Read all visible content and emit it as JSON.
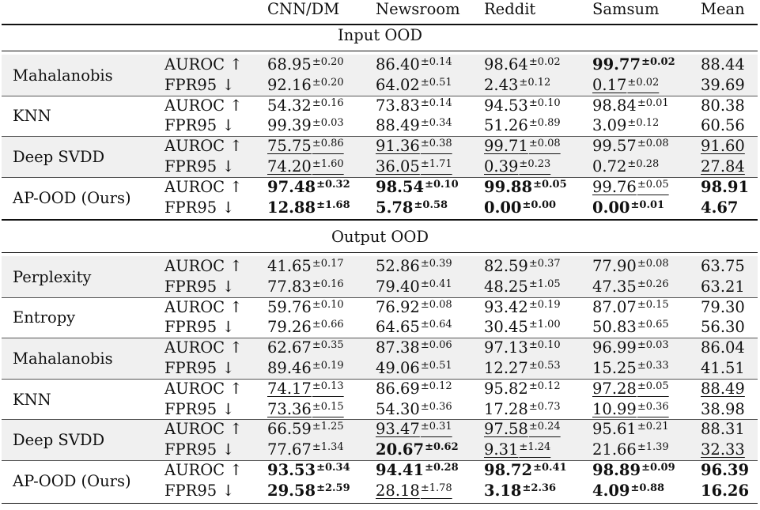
{
  "header": {
    "col0": "",
    "col1": "",
    "cols": [
      "CNN/DM",
      "Newsroom",
      "Reddit",
      "Samsum",
      "Mean"
    ]
  },
  "sections": [
    {
      "title": "Input OOD",
      "groups": [
        {
          "method": "Mahalanobis",
          "shaded": true,
          "rows": [
            {
              "metric": "AUROC ↑",
              "cells": [
                {
                  "v": "68.95",
                  "s": "±0.20",
                  "b": false,
                  "u": false
                },
                {
                  "v": "86.40",
                  "s": "±0.14",
                  "b": false,
                  "u": false
                },
                {
                  "v": "98.64",
                  "s": "±0.02",
                  "b": false,
                  "u": false
                },
                {
                  "v": "99.77",
                  "s": "±0.02",
                  "b": true,
                  "u": false
                },
                {
                  "v": "88.44",
                  "s": "",
                  "b": false,
                  "u": false
                }
              ]
            },
            {
              "metric": "FPR95 ↓",
              "cells": [
                {
                  "v": "92.16",
                  "s": "±0.20",
                  "b": false,
                  "u": false
                },
                {
                  "v": "64.02",
                  "s": "±0.51",
                  "b": false,
                  "u": false
                },
                {
                  "v": "2.43",
                  "s": "±0.12",
                  "b": false,
                  "u": false
                },
                {
                  "v": "0.17",
                  "s": "±0.02",
                  "b": false,
                  "u": true
                },
                {
                  "v": "39.69",
                  "s": "",
                  "b": false,
                  "u": false
                }
              ]
            }
          ]
        },
        {
          "method": "KNN",
          "shaded": false,
          "rows": [
            {
              "metric": "AUROC ↑",
              "cells": [
                {
                  "v": "54.32",
                  "s": "±0.16",
                  "b": false,
                  "u": false
                },
                {
                  "v": "73.83",
                  "s": "±0.14",
                  "b": false,
                  "u": false
                },
                {
                  "v": "94.53",
                  "s": "±0.10",
                  "b": false,
                  "u": false
                },
                {
                  "v": "98.84",
                  "s": "±0.01",
                  "b": false,
                  "u": false
                },
                {
                  "v": "80.38",
                  "s": "",
                  "b": false,
                  "u": false
                }
              ]
            },
            {
              "metric": "FPR95 ↓",
              "cells": [
                {
                  "v": "99.39",
                  "s": "±0.03",
                  "b": false,
                  "u": false
                },
                {
                  "v": "88.49",
                  "s": "±0.34",
                  "b": false,
                  "u": false
                },
                {
                  "v": "51.26",
                  "s": "±0.89",
                  "b": false,
                  "u": false
                },
                {
                  "v": "3.09",
                  "s": "±0.12",
                  "b": false,
                  "u": false
                },
                {
                  "v": "60.56",
                  "s": "",
                  "b": false,
                  "u": false
                }
              ]
            }
          ]
        },
        {
          "method": "Deep SVDD",
          "shaded": true,
          "rows": [
            {
              "metric": "AUROC ↑",
              "cells": [
                {
                  "v": "75.75",
                  "s": "±0.86",
                  "b": false,
                  "u": true
                },
                {
                  "v": "91.36",
                  "s": "±0.38",
                  "b": false,
                  "u": true
                },
                {
                  "v": "99.71",
                  "s": "±0.08",
                  "b": false,
                  "u": true
                },
                {
                  "v": "99.57",
                  "s": "±0.08",
                  "b": false,
                  "u": false
                },
                {
                  "v": "91.60",
                  "s": "",
                  "b": false,
                  "u": true
                }
              ]
            },
            {
              "metric": "FPR95 ↓",
              "cells": [
                {
                  "v": "74.20",
                  "s": "±1.60",
                  "b": false,
                  "u": true
                },
                {
                  "v": "36.05",
                  "s": "±1.71",
                  "b": false,
                  "u": true
                },
                {
                  "v": "0.39",
                  "s": "±0.23",
                  "b": false,
                  "u": true
                },
                {
                  "v": "0.72",
                  "s": "±0.28",
                  "b": false,
                  "u": false
                },
                {
                  "v": "27.84",
                  "s": "",
                  "b": false,
                  "u": true
                }
              ]
            }
          ]
        },
        {
          "method": "AP-OOD (Ours)",
          "shaded": false,
          "rows": [
            {
              "metric": "AUROC ↑",
              "cells": [
                {
                  "v": "97.48",
                  "s": "±0.32",
                  "b": true,
                  "u": false
                },
                {
                  "v": "98.54",
                  "s": "±0.10",
                  "b": true,
                  "u": false
                },
                {
                  "v": "99.88",
                  "s": "±0.05",
                  "b": true,
                  "u": false
                },
                {
                  "v": "99.76",
                  "s": "±0.05",
                  "b": false,
                  "u": true
                },
                {
                  "v": "98.91",
                  "s": "",
                  "b": true,
                  "u": false
                }
              ]
            },
            {
              "metric": "FPR95 ↓",
              "cells": [
                {
                  "v": "12.88",
                  "s": "±1.68",
                  "b": true,
                  "u": false
                },
                {
                  "v": "5.78",
                  "s": "±0.58",
                  "b": true,
                  "u": false
                },
                {
                  "v": "0.00",
                  "s": "±0.00",
                  "b": true,
                  "u": false
                },
                {
                  "v": "0.00",
                  "s": "±0.01",
                  "b": true,
                  "u": false
                },
                {
                  "v": "4.67",
                  "s": "",
                  "b": true,
                  "u": false
                }
              ]
            }
          ]
        }
      ]
    },
    {
      "title": "Output OOD",
      "groups": [
        {
          "method": "Perplexity",
          "shaded": true,
          "rows": [
            {
              "metric": "AUROC ↑",
              "cells": [
                {
                  "v": "41.65",
                  "s": "±0.17",
                  "b": false,
                  "u": false
                },
                {
                  "v": "52.86",
                  "s": "±0.39",
                  "b": false,
                  "u": false
                },
                {
                  "v": "82.59",
                  "s": "±0.37",
                  "b": false,
                  "u": false
                },
                {
                  "v": "77.90",
                  "s": "±0.08",
                  "b": false,
                  "u": false
                },
                {
                  "v": "63.75",
                  "s": "",
                  "b": false,
                  "u": false
                }
              ]
            },
            {
              "metric": "FPR95 ↓",
              "cells": [
                {
                  "v": "77.83",
                  "s": "±0.16",
                  "b": false,
                  "u": false
                },
                {
                  "v": "79.40",
                  "s": "±0.41",
                  "b": false,
                  "u": false
                },
                {
                  "v": "48.25",
                  "s": "±1.05",
                  "b": false,
                  "u": false
                },
                {
                  "v": "47.35",
                  "s": "±0.26",
                  "b": false,
                  "u": false
                },
                {
                  "v": "63.21",
                  "s": "",
                  "b": false,
                  "u": false
                }
              ]
            }
          ]
        },
        {
          "method": "Entropy",
          "shaded": false,
          "rows": [
            {
              "metric": "AUROC ↑",
              "cells": [
                {
                  "v": "59.76",
                  "s": "±0.10",
                  "b": false,
                  "u": false
                },
                {
                  "v": "76.92",
                  "s": "±0.08",
                  "b": false,
                  "u": false
                },
                {
                  "v": "93.42",
                  "s": "±0.19",
                  "b": false,
                  "u": false
                },
                {
                  "v": "87.07",
                  "s": "±0.15",
                  "b": false,
                  "u": false
                },
                {
                  "v": "79.30",
                  "s": "",
                  "b": false,
                  "u": false
                }
              ]
            },
            {
              "metric": "FPR95 ↓",
              "cells": [
                {
                  "v": "79.26",
                  "s": "±0.66",
                  "b": false,
                  "u": false
                },
                {
                  "v": "64.65",
                  "s": "±0.64",
                  "b": false,
                  "u": false
                },
                {
                  "v": "30.45",
                  "s": "±1.00",
                  "b": false,
                  "u": false
                },
                {
                  "v": "50.83",
                  "s": "±0.65",
                  "b": false,
                  "u": false
                },
                {
                  "v": "56.30",
                  "s": "",
                  "b": false,
                  "u": false
                }
              ]
            }
          ]
        },
        {
          "method": "Mahalanobis",
          "shaded": true,
          "rows": [
            {
              "metric": "AUROC ↑",
              "cells": [
                {
                  "v": "62.67",
                  "s": "±0.35",
                  "b": false,
                  "u": false
                },
                {
                  "v": "87.38",
                  "s": "±0.06",
                  "b": false,
                  "u": false
                },
                {
                  "v": "97.13",
                  "s": "±0.10",
                  "b": false,
                  "u": false
                },
                {
                  "v": "96.99",
                  "s": "±0.03",
                  "b": false,
                  "u": false
                },
                {
                  "v": "86.04",
                  "s": "",
                  "b": false,
                  "u": false
                }
              ]
            },
            {
              "metric": "FPR95 ↓",
              "cells": [
                {
                  "v": "89.46",
                  "s": "±0.19",
                  "b": false,
                  "u": false
                },
                {
                  "v": "49.06",
                  "s": "±0.51",
                  "b": false,
                  "u": false
                },
                {
                  "v": "12.27",
                  "s": "±0.53",
                  "b": false,
                  "u": false
                },
                {
                  "v": "15.25",
                  "s": "±0.33",
                  "b": false,
                  "u": false
                },
                {
                  "v": "41.51",
                  "s": "",
                  "b": false,
                  "u": false
                }
              ]
            }
          ]
        },
        {
          "method": "KNN",
          "shaded": false,
          "rows": [
            {
              "metric": "AUROC ↑",
              "cells": [
                {
                  "v": "74.17",
                  "s": "±0.13",
                  "b": false,
                  "u": true
                },
                {
                  "v": "86.69",
                  "s": "±0.12",
                  "b": false,
                  "u": false
                },
                {
                  "v": "95.82",
                  "s": "±0.12",
                  "b": false,
                  "u": false
                },
                {
                  "v": "97.28",
                  "s": "±0.05",
                  "b": false,
                  "u": true
                },
                {
                  "v": "88.49",
                  "s": "",
                  "b": false,
                  "u": true
                }
              ]
            },
            {
              "metric": "FPR95 ↓",
              "cells": [
                {
                  "v": "73.36",
                  "s": "±0.15",
                  "b": false,
                  "u": true
                },
                {
                  "v": "54.30",
                  "s": "±0.36",
                  "b": false,
                  "u": false
                },
                {
                  "v": "17.28",
                  "s": "±0.73",
                  "b": false,
                  "u": false
                },
                {
                  "v": "10.99",
                  "s": "±0.36",
                  "b": false,
                  "u": true
                },
                {
                  "v": "38.98",
                  "s": "",
                  "b": false,
                  "u": false
                }
              ]
            }
          ]
        },
        {
          "method": "Deep SVDD",
          "shaded": true,
          "rows": [
            {
              "metric": "AUROC ↑",
              "cells": [
                {
                  "v": "66.59",
                  "s": "±1.25",
                  "b": false,
                  "u": false
                },
                {
                  "v": "93.47",
                  "s": "±0.31",
                  "b": false,
                  "u": true
                },
                {
                  "v": "97.58",
                  "s": "±0.24",
                  "b": false,
                  "u": true
                },
                {
                  "v": "95.61",
                  "s": "±0.21",
                  "b": false,
                  "u": false
                },
                {
                  "v": "88.31",
                  "s": "",
                  "b": false,
                  "u": false
                }
              ]
            },
            {
              "metric": "FPR95 ↓",
              "cells": [
                {
                  "v": "77.67",
                  "s": "±1.34",
                  "b": false,
                  "u": false
                },
                {
                  "v": "20.67",
                  "s": "±0.62",
                  "b": true,
                  "u": false
                },
                {
                  "v": "9.31",
                  "s": "±1.24",
                  "b": false,
                  "u": true
                },
                {
                  "v": "21.66",
                  "s": "±1.39",
                  "b": false,
                  "u": false
                },
                {
                  "v": "32.33",
                  "s": "",
                  "b": false,
                  "u": true
                }
              ]
            }
          ]
        },
        {
          "method": "AP-OOD (Ours)",
          "shaded": false,
          "rows": [
            {
              "metric": "AUROC ↑",
              "cells": [
                {
                  "v": "93.53",
                  "s": "±0.34",
                  "b": true,
                  "u": false
                },
                {
                  "v": "94.41",
                  "s": "±0.28",
                  "b": true,
                  "u": false
                },
                {
                  "v": "98.72",
                  "s": "±0.41",
                  "b": true,
                  "u": false
                },
                {
                  "v": "98.89",
                  "s": "±0.09",
                  "b": true,
                  "u": false
                },
                {
                  "v": "96.39",
                  "s": "",
                  "b": true,
                  "u": false
                }
              ]
            },
            {
              "metric": "FPR95 ↓",
              "cells": [
                {
                  "v": "29.58",
                  "s": "±2.59",
                  "b": true,
                  "u": false
                },
                {
                  "v": "28.18",
                  "s": "±1.78",
                  "b": false,
                  "u": true
                },
                {
                  "v": "3.18",
                  "s": "±2.36",
                  "b": true,
                  "u": false
                },
                {
                  "v": "4.09",
                  "s": "±0.88",
                  "b": true,
                  "u": false
                },
                {
                  "v": "16.26",
                  "s": "",
                  "b": true,
                  "u": false
                }
              ]
            }
          ]
        }
      ]
    }
  ]
}
